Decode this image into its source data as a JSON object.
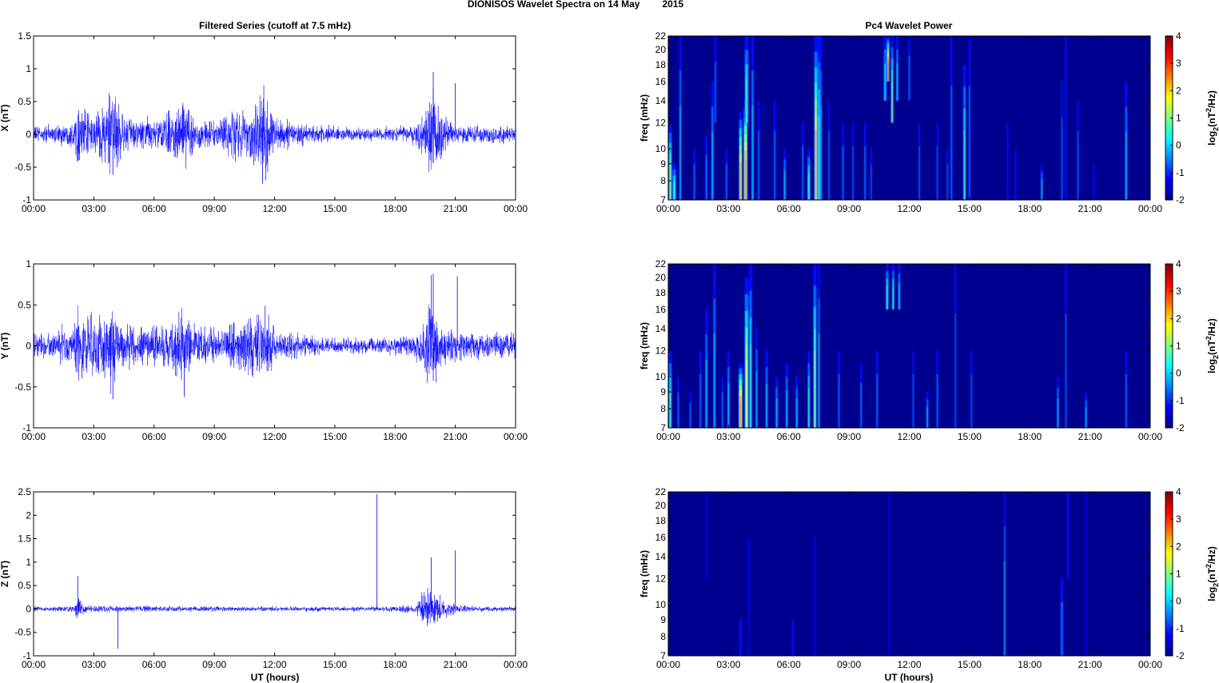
{
  "figure": {
    "title_left": "DIONISOS Wavelet Spectra on 14 May",
    "title_right": "2015",
    "left_column_title": "Filtered Series (cutoff at 7.5 mHz)",
    "right_column_title": "Pc4 Wavelet Power",
    "time_xlabel": "UT (hours)",
    "freq_ylabel": "freq (mHz)",
    "colorbar_label_base": "log",
    "colorbar_label_sub": "2",
    "colorbar_label_mid": "(nT",
    "colorbar_label_sup": "2",
    "colorbar_label_end": "/Hz)"
  },
  "colors": {
    "trace": "#0000ff",
    "spectrum_background": "#00008f",
    "axes": "#000000"
  },
  "chart_data": [
    {
      "type": "line",
      "panel": "filtered-x",
      "ylabel": "X (nT)",
      "x_ticks": [
        "00:00",
        "03:00",
        "06:00",
        "09:00",
        "12:00",
        "15:00",
        "18:00",
        "21:00",
        "00:00"
      ],
      "xlim_hours": [
        0,
        24
      ],
      "ylim": [
        -1,
        1.5
      ],
      "y_ticks": [
        -1,
        -0.5,
        0,
        0.5,
        1,
        1.5
      ],
      "y_tick_labels": [
        "-1",
        "-0.5",
        "0",
        "0.5",
        "1",
        "1.5"
      ],
      "series": [
        {
          "hours": [
            0,
            1,
            2,
            2.2,
            3,
            3.8,
            4.5,
            5,
            6,
            7,
            7.5,
            8,
            9,
            9.5,
            10,
            11,
            11.3,
            11.7,
            12,
            13,
            14,
            15,
            16,
            17,
            18,
            19,
            19.5,
            19.8,
            20,
            20.3,
            21,
            22,
            23,
            24
          ],
          "envelope_nT": [
            0.12,
            0.14,
            0.2,
            0.45,
            0.25,
            0.7,
            0.3,
            0.22,
            0.28,
            0.35,
            0.55,
            0.25,
            0.22,
            0.3,
            0.4,
            0.45,
            0.8,
            0.6,
            0.25,
            0.18,
            0.14,
            0.12,
            0.1,
            0.1,
            0.11,
            0.15,
            0.4,
            0.95,
            0.6,
            0.35,
            0.14,
            0.12,
            0.12,
            0.12
          ]
        }
      ],
      "spikes": [
        [
          19.9,
          0.95
        ],
        [
          21.0,
          0.78
        ],
        [
          11.4,
          -0.75
        ],
        [
          3.95,
          -0.62
        ]
      ]
    },
    {
      "type": "line",
      "panel": "filtered-y",
      "ylabel": "Y (nT)",
      "x_ticks": [
        "00:00",
        "03:00",
        "06:00",
        "09:00",
        "12:00",
        "15:00",
        "18:00",
        "21:00",
        "00:00"
      ],
      "xlim_hours": [
        0,
        24
      ],
      "ylim": [
        -1,
        1
      ],
      "y_ticks": [
        -1,
        -0.5,
        0,
        0.5,
        1
      ],
      "y_tick_labels": [
        "-1",
        "-0.5",
        "0",
        "0.5",
        "1"
      ],
      "series": [
        {
          "hours": [
            0,
            1,
            2,
            2.2,
            3,
            3.8,
            4.5,
            5,
            6,
            7,
            7.5,
            8,
            9,
            10,
            11,
            11.3,
            11.7,
            12,
            13,
            14,
            15,
            16,
            17,
            18,
            19,
            19.5,
            19.8,
            20,
            20.3,
            21,
            22,
            23,
            24
          ],
          "envelope_nT": [
            0.15,
            0.18,
            0.25,
            0.45,
            0.35,
            0.5,
            0.3,
            0.25,
            0.25,
            0.3,
            0.45,
            0.25,
            0.22,
            0.25,
            0.4,
            0.45,
            0.35,
            0.2,
            0.15,
            0.12,
            0.1,
            0.09,
            0.09,
            0.1,
            0.15,
            0.35,
            0.85,
            0.5,
            0.3,
            0.2,
            0.15,
            0.15,
            0.15
          ]
        }
      ],
      "spikes": [
        [
          19.9,
          0.88
        ],
        [
          21.1,
          0.85
        ],
        [
          3.95,
          -0.65
        ],
        [
          7.5,
          -0.62
        ]
      ]
    },
    {
      "type": "line",
      "panel": "filtered-z",
      "ylabel": "Z (nT)",
      "x_ticks": [
        "00:00",
        "03:00",
        "06:00",
        "09:00",
        "12:00",
        "15:00",
        "18:00",
        "21:00",
        "00:00"
      ],
      "xlim_hours": [
        0,
        24
      ],
      "ylim": [
        -1,
        2.5
      ],
      "y_ticks": [
        -1,
        -0.5,
        0,
        0.5,
        1,
        1.5,
        2,
        2.5
      ],
      "y_tick_labels": [
        "-1",
        "-0.5",
        "0",
        "0.5",
        "1",
        "1.5",
        "2",
        "2.5"
      ],
      "series": [
        {
          "hours": [
            0,
            2,
            2.2,
            2.5,
            4,
            6,
            8,
            10,
            12,
            14,
            16,
            17,
            18,
            19,
            19.5,
            19.8,
            20,
            20.3,
            21,
            22,
            24
          ],
          "envelope_nT": [
            0.05,
            0.06,
            0.3,
            0.08,
            0.06,
            0.06,
            0.06,
            0.05,
            0.05,
            0.05,
            0.05,
            0.06,
            0.06,
            0.08,
            0.4,
            0.6,
            0.45,
            0.3,
            0.1,
            0.06,
            0.05
          ]
        }
      ],
      "spikes": [
        [
          17.1,
          2.45
        ],
        [
          21.0,
          1.25
        ],
        [
          19.8,
          1.1
        ],
        [
          4.2,
          -0.85
        ],
        [
          2.2,
          0.7
        ]
      ]
    },
    {
      "type": "heatmap",
      "panel": "wavelet-x",
      "ylabel": "freq (mHz)",
      "x_ticks": [
        "00:00",
        "03:00",
        "06:00",
        "09:00",
        "12:00",
        "15:00",
        "18:00",
        "21:00",
        "00:00"
      ],
      "ylim_mhz": [
        7,
        22
      ],
      "y_ticks": [
        7,
        8,
        9,
        10,
        12,
        14,
        16,
        18,
        20,
        22
      ],
      "colorbar": {
        "ticks": [
          -2,
          -1,
          0,
          1,
          2,
          3,
          4
        ],
        "range": [
          -2,
          4
        ]
      },
      "bursts": [
        [
          0.1,
          1.6,
          7,
          12,
          0.08
        ],
        [
          0.3,
          0.7,
          7,
          9,
          0.1
        ],
        [
          0.6,
          0.0,
          7,
          22,
          0.05
        ],
        [
          1.3,
          -0.3,
          7,
          10,
          0.05
        ],
        [
          1.9,
          -0.1,
          7,
          11,
          0.06
        ],
        [
          2.2,
          0.4,
          7,
          16,
          0.06
        ],
        [
          2.35,
          -0.3,
          12,
          22,
          0.05
        ],
        [
          2.9,
          -0.2,
          7,
          10,
          0.05
        ],
        [
          3.6,
          2.6,
          7,
          13,
          0.08
        ],
        [
          3.85,
          3.0,
          7,
          14,
          0.1
        ],
        [
          3.9,
          1.0,
          12,
          22,
          0.1
        ],
        [
          4.2,
          0.0,
          7,
          22,
          0.06
        ],
        [
          4.5,
          -0.5,
          7,
          14,
          0.05
        ],
        [
          5.3,
          -0.3,
          7,
          14,
          0.05
        ],
        [
          5.8,
          0.4,
          7,
          10,
          0.06
        ],
        [
          6.7,
          -0.2,
          7,
          12,
          0.05
        ],
        [
          7.0,
          0.8,
          7,
          10,
          0.08
        ],
        [
          7.35,
          2.4,
          7,
          22,
          0.08
        ],
        [
          7.5,
          1.0,
          7,
          22,
          0.07
        ],
        [
          7.6,
          0.2,
          7,
          22,
          0.05
        ],
        [
          8.0,
          -0.3,
          7,
          14,
          0.04
        ],
        [
          8.7,
          -0.3,
          7,
          12,
          0.05
        ],
        [
          9.2,
          -0.4,
          7,
          12,
          0.04
        ],
        [
          9.8,
          -0.5,
          7,
          12,
          0.05
        ],
        [
          10.1,
          -0.5,
          7,
          10,
          0.04
        ],
        [
          10.8,
          0.5,
          14,
          22,
          0.08
        ],
        [
          10.95,
          3.6,
          16,
          22,
          0.06
        ],
        [
          11.15,
          1.2,
          12,
          22,
          0.06
        ],
        [
          11.4,
          0.0,
          14,
          22,
          0.06
        ],
        [
          12.0,
          -0.3,
          14,
          22,
          0.05
        ],
        [
          12.5,
          -0.5,
          7,
          12,
          0.04
        ],
        [
          13.4,
          -0.4,
          7,
          12,
          0.04
        ],
        [
          13.9,
          -0.5,
          7,
          10,
          0.04
        ],
        [
          14.1,
          -0.3,
          7,
          22,
          0.05
        ],
        [
          14.75,
          0.6,
          7,
          18,
          0.07
        ],
        [
          15.0,
          -0.3,
          7,
          22,
          0.05
        ],
        [
          16.9,
          -0.7,
          7,
          12,
          0.04
        ],
        [
          17.3,
          -0.8,
          7,
          10,
          0.04
        ],
        [
          18.6,
          0.2,
          7,
          9,
          0.05
        ],
        [
          19.6,
          -0.6,
          7,
          16,
          0.04
        ],
        [
          19.8,
          -0.7,
          7,
          22,
          0.04
        ],
        [
          20.4,
          -0.6,
          7,
          14,
          0.04
        ],
        [
          21.2,
          -0.7,
          7,
          9,
          0.04
        ],
        [
          22.8,
          0.2,
          7,
          16,
          0.06
        ]
      ]
    },
    {
      "type": "heatmap",
      "panel": "wavelet-y",
      "ylabel": "freq (mHz)",
      "x_ticks": [
        "00:00",
        "03:00",
        "06:00",
        "09:00",
        "12:00",
        "15:00",
        "18:00",
        "21:00",
        "00:00"
      ],
      "ylim_mhz": [
        7,
        22
      ],
      "y_ticks": [
        7,
        8,
        9,
        10,
        12,
        14,
        16,
        18,
        20,
        22
      ],
      "colorbar": {
        "ticks": [
          -2,
          -1,
          0,
          1,
          2,
          3,
          4
        ],
        "range": [
          -2,
          4
        ]
      },
      "bursts": [
        [
          0.1,
          0.6,
          7,
          12,
          0.08
        ],
        [
          0.5,
          -0.4,
          7,
          10,
          0.05
        ],
        [
          1.1,
          -0.4,
          7,
          9,
          0.05
        ],
        [
          1.6,
          -0.3,
          7,
          12,
          0.05
        ],
        [
          1.9,
          0.3,
          7,
          16,
          0.06
        ],
        [
          2.3,
          0.2,
          7,
          22,
          0.06
        ],
        [
          2.7,
          -0.3,
          7,
          10,
          0.05
        ],
        [
          3.0,
          0.2,
          7,
          12,
          0.06
        ],
        [
          3.6,
          3.2,
          7,
          11,
          0.1
        ],
        [
          3.9,
          2.0,
          7,
          20,
          0.1
        ],
        [
          4.1,
          0.8,
          7,
          22,
          0.07
        ],
        [
          4.4,
          0.0,
          7,
          14,
          0.05
        ],
        [
          4.9,
          0.2,
          7,
          12,
          0.06
        ],
        [
          5.4,
          0.3,
          7,
          10,
          0.06
        ],
        [
          5.9,
          0.0,
          7,
          11,
          0.06
        ],
        [
          6.4,
          0.2,
          7,
          10,
          0.06
        ],
        [
          7.0,
          0.8,
          7,
          12,
          0.06
        ],
        [
          7.3,
          1.4,
          7,
          22,
          0.08
        ],
        [
          7.5,
          0.5,
          7,
          22,
          0.05
        ],
        [
          8.5,
          -0.4,
          7,
          12,
          0.05
        ],
        [
          9.6,
          -0.5,
          7,
          11,
          0.05
        ],
        [
          10.4,
          -0.6,
          7,
          12,
          0.05
        ],
        [
          10.9,
          0.8,
          16,
          22,
          0.07
        ],
        [
          11.2,
          0.6,
          16,
          22,
          0.06
        ],
        [
          11.5,
          0.2,
          16,
          22,
          0.06
        ],
        [
          12.2,
          -0.5,
          7,
          12,
          0.04
        ],
        [
          12.9,
          0.0,
          7,
          9,
          0.05
        ],
        [
          13.4,
          -0.4,
          7,
          12,
          0.05
        ],
        [
          14.3,
          -0.6,
          7,
          22,
          0.04
        ],
        [
          15.1,
          -0.6,
          7,
          12,
          0.04
        ],
        [
          19.4,
          0.0,
          7,
          10,
          0.05
        ],
        [
          19.8,
          -0.6,
          7,
          22,
          0.04
        ],
        [
          20.8,
          0.0,
          7,
          9,
          0.05
        ],
        [
          22.8,
          -0.3,
          7,
          12,
          0.05
        ]
      ]
    },
    {
      "type": "heatmap",
      "panel": "wavelet-z",
      "ylabel": "freq (mHz)",
      "x_ticks": [
        "00:00",
        "03:00",
        "06:00",
        "09:00",
        "12:00",
        "15:00",
        "18:00",
        "21:00",
        "00:00"
      ],
      "ylim_mhz": [
        7,
        22
      ],
      "y_ticks": [
        7,
        8,
        9,
        10,
        12,
        14,
        16,
        18,
        20,
        22
      ],
      "colorbar": {
        "ticks": [
          -2,
          -1,
          0,
          1,
          2,
          3,
          4
        ],
        "range": [
          -2,
          4
        ]
      },
      "bursts": [
        [
          1.9,
          -1.4,
          12,
          22,
          0.04
        ],
        [
          3.6,
          -0.8,
          7,
          9,
          0.06
        ],
        [
          4.0,
          -1.3,
          7,
          16,
          0.04
        ],
        [
          6.2,
          -1.2,
          7,
          9,
          0.05
        ],
        [
          7.3,
          -1.4,
          7,
          16,
          0.05
        ],
        [
          11.0,
          -1.4,
          7,
          22,
          0.04
        ],
        [
          16.75,
          0.5,
          7,
          22,
          0.04
        ],
        [
          19.6,
          -0.4,
          7,
          12,
          0.07
        ],
        [
          19.9,
          -0.9,
          12,
          22,
          0.05
        ],
        [
          20.8,
          -1.3,
          7,
          22,
          0.04
        ]
      ]
    }
  ]
}
